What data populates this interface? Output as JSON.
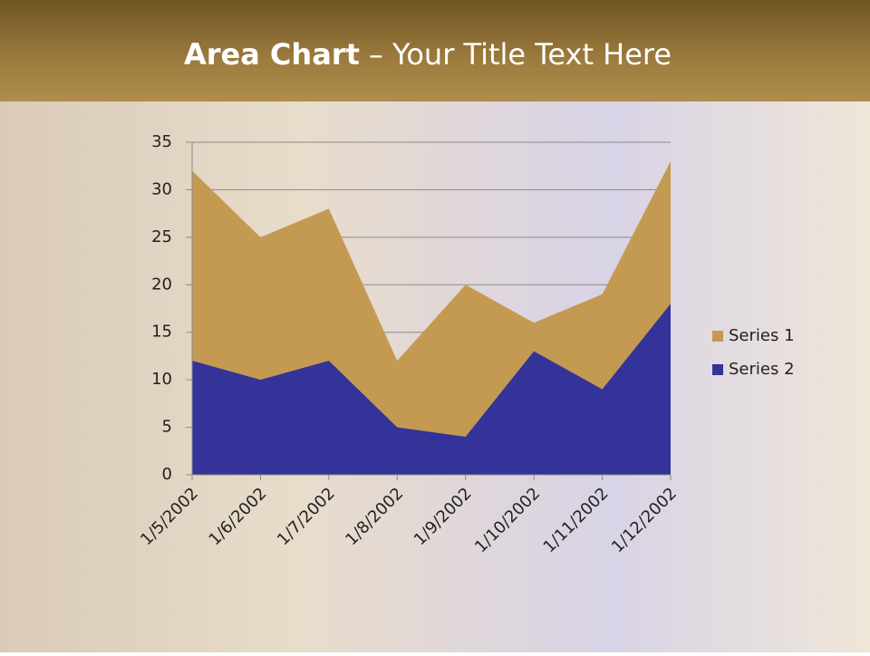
{
  "chart_data": {
    "type": "area",
    "title_bold": "Area Chart",
    "title": "– Your Title Text Here",
    "categories": [
      "1/5/2002",
      "1/6/2002",
      "1/7/2002",
      "1/8/2002",
      "1/9/2002",
      "1/10/2002",
      "1/11/2002",
      "1/12/2002"
    ],
    "series": [
      {
        "name": "Series 1",
        "color": "#c49a52",
        "values": [
          32,
          25,
          28,
          12,
          20,
          16,
          19,
          33
        ]
      },
      {
        "name": "Series 2",
        "color": "#333399",
        "values": [
          12,
          10,
          12,
          5,
          4,
          13,
          9,
          18
        ]
      }
    ],
    "ylim": [
      0,
      35
    ],
    "yticks": [
      0,
      5,
      10,
      15,
      20,
      25,
      30,
      35
    ],
    "grid": true,
    "legend": "right"
  }
}
